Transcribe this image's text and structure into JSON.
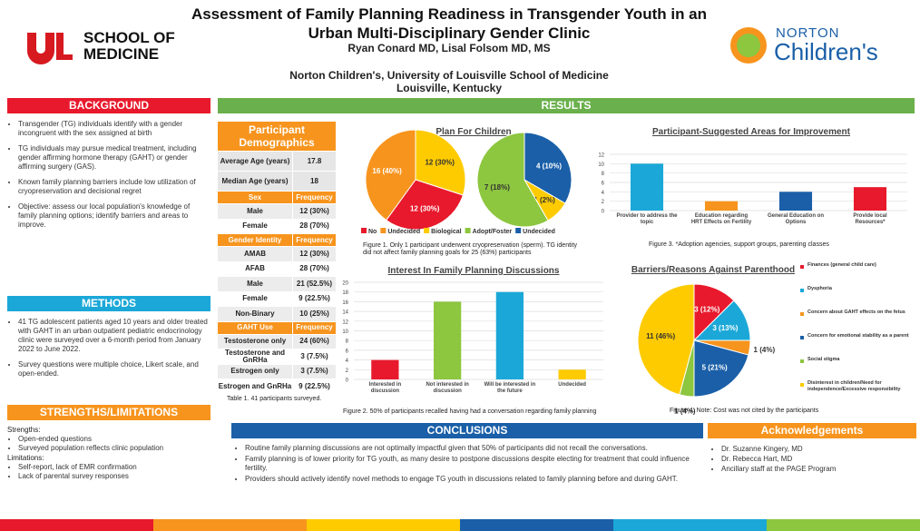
{
  "header": {
    "title": "Assessment of Family Planning Readiness in Transgender Youth in an Urban Multi-Disciplinary Gender Clinic",
    "authors": "Ryan Conard MD, Lisal Folsom MD, MS",
    "affiliation": "Norton Children's, University of Louisville School of Medicine",
    "location": "Louisville, Kentucky",
    "logo_left": "SCHOOL OF MEDICINE",
    "logo_right_top": "NORTON",
    "logo_right": "Children's"
  },
  "background": {
    "heading": "BACKGROUND",
    "items": [
      "Transgender (TG) individuals identify with a gender incongruent with the sex assigned at birth",
      "TG individuals may pursue medical treatment, including gender affirming hormone therapy (GAHT) or gender affirming surgery (GAS).",
      "Known family planning barriers include low utilization of cryopreservation and decisional regret",
      "Objective: assess our local population's knowledge of family planning options; identify barriers and areas to improve."
    ]
  },
  "methods": {
    "heading": "METHODS",
    "items": [
      "41 TG adolescent patients aged 10 years and older treated with GAHT in an urban outpatient pediatric endocrinology clinic were surveyed over a 6-month period from January 2022 to June 2022.",
      "Survey questions were multiple choice, Likert scale, and open-ended."
    ]
  },
  "strengths": {
    "heading": "STRENGTHS/LIMITATIONS",
    "strengths_label": "Strengths:",
    "strengths": [
      "Open-ended questions",
      "Surveyed population reflects clinic population"
    ],
    "limitations_label": "Limitations:",
    "limitations": [
      "Self-report, lack of EMR confirmation",
      "Lack of parental survey responses"
    ]
  },
  "results": {
    "heading": "RESULTS"
  },
  "demographics": {
    "title": "Participant Demographics",
    "top": [
      [
        "Average Age (years)",
        "17.8"
      ],
      [
        "Median Age (years)",
        "18"
      ]
    ],
    "groups": [
      {
        "header": [
          "Sex",
          "Frequency"
        ],
        "rows": [
          [
            "Male",
            "12 (30%)"
          ],
          [
            "Female",
            "28 (70%)"
          ]
        ]
      },
      {
        "header": [
          "Gender Identity",
          "Frequency"
        ],
        "rows": [
          [
            "AMAB",
            "12 (30%)"
          ],
          [
            "AFAB",
            "28 (70%)"
          ],
          [
            "Male",
            "21 (52.5%)"
          ],
          [
            "Female",
            "9 (22.5%)"
          ],
          [
            "Non-Binary",
            "10 (25%)"
          ]
        ]
      },
      {
        "header": [
          "GAHT Use",
          "Frequency"
        ],
        "rows": [
          [
            "Testosterone only",
            "24 (60%)"
          ],
          [
            "Testosterone and GnRHa",
            "3 (7.5%)"
          ],
          [
            "Estrogen only",
            "3 (7.5%)"
          ],
          [
            "Estrogen and GnRHa",
            "9 (22.5%)"
          ]
        ]
      }
    ],
    "caption": "Table 1. 41 participants surveyed."
  },
  "chart_data": [
    {
      "type": "pie",
      "title": "Plan For Children",
      "legend": {
        "names": [
          "No",
          "Undecided",
          "Biological",
          "Adopt/Foster",
          "Undecided"
        ],
        "colors": [
          "#e8192c",
          "#f7941d",
          "#fecb00",
          "#8dc63f",
          "#1a5fa8"
        ]
      },
      "pies": [
        {
          "values": [
            12,
            12,
            16
          ],
          "value_labels": [
            "12 (30%)",
            "12 (30%)",
            "16 (40%)"
          ],
          "colors": [
            "#fecb00",
            "#e8192c",
            "#f7941d"
          ]
        },
        {
          "values": [
            4,
            1,
            7
          ],
          "value_labels": [
            "4 (10%)",
            "1 (2%)",
            "7 (18%)"
          ],
          "colors": [
            "#1a5fa8",
            "#fecb00",
            "#8dc63f"
          ]
        }
      ],
      "caption": "Figure 1. Only 1 participant underwent cryopreservation (sperm). TG identity did not affect family planning goals for 25 (63%) participants"
    },
    {
      "type": "bar",
      "title": "Participant-Suggested Areas for Improvement",
      "categories": [
        "Provider to address the topic",
        "Education regarding HRT Effects on Fertility",
        "General Education on Options",
        "Provide local Resources*"
      ],
      "values": [
        10,
        2,
        4,
        5
      ],
      "colors": [
        "#1ba8d8",
        "#f7941d",
        "#1a5fa8",
        "#e8192c"
      ],
      "ylim": [
        0,
        12
      ],
      "yticks": [
        0,
        2,
        4,
        6,
        8,
        10,
        12
      ],
      "caption": "Figure 3. *Adoption agencies, support groups, parenting classes"
    },
    {
      "type": "bar",
      "title": "Interest In Family Planning Discussions",
      "categories": [
        "Interested in discussion",
        "Not interested in discussion",
        "Will be interested in the future",
        "Undecided"
      ],
      "values": [
        4,
        16,
        18,
        2
      ],
      "colors": [
        "#e8192c",
        "#8dc63f",
        "#1ba8d8",
        "#fecb00"
      ],
      "ylim": [
        0,
        20
      ],
      "yticks": [
        0,
        2,
        4,
        6,
        8,
        10,
        12,
        14,
        16,
        18,
        20
      ],
      "caption": "Figure 2. 50% of participants recalled having had a conversation regarding family planning"
    },
    {
      "type": "pie",
      "title": "Barriers/Reasons Against Parenthood",
      "categories": [
        "Finances (general child care)",
        "Dysphoria",
        "Concern about GAHT effects on the fetus",
        "Concern for emotional stability as a parent",
        "Social stigma",
        "Disinterest in children/Need for independence/Excessive responsibility"
      ],
      "values": [
        3,
        3,
        1,
        5,
        1,
        11
      ],
      "value_labels": [
        "3 (12%)",
        "3 (13%)",
        "1 (4%)",
        "5 (21%)",
        "1 (4%)",
        "11 (46%)"
      ],
      "colors": [
        "#e8192c",
        "#1ba8d8",
        "#f7941d",
        "#1a5fa8",
        "#8dc63f",
        "#fecb00"
      ],
      "caption": "Figure 4. Note: Cost was not cited by the participants"
    }
  ],
  "conclusions": {
    "heading": "CONCLUSIONS",
    "items": [
      "Routine family planning discussions are not optimally impactful given that 50% of participants did not recall the conversations.",
      "Family planning is of lower priority for TG youth, as many desire to postpone discussions despite electing for treatment that could influence fertility.",
      "Providers should actively identify novel methods to engage TG youth in discussions related to family planning before and during GAHT."
    ]
  },
  "acknowledgements": {
    "heading": "Acknowledgements",
    "items": [
      "Dr. Suzanne Kingery, MD",
      "Dr. Rebecca Hart, MD",
      "Ancillary staff at the PAGE Program"
    ]
  }
}
